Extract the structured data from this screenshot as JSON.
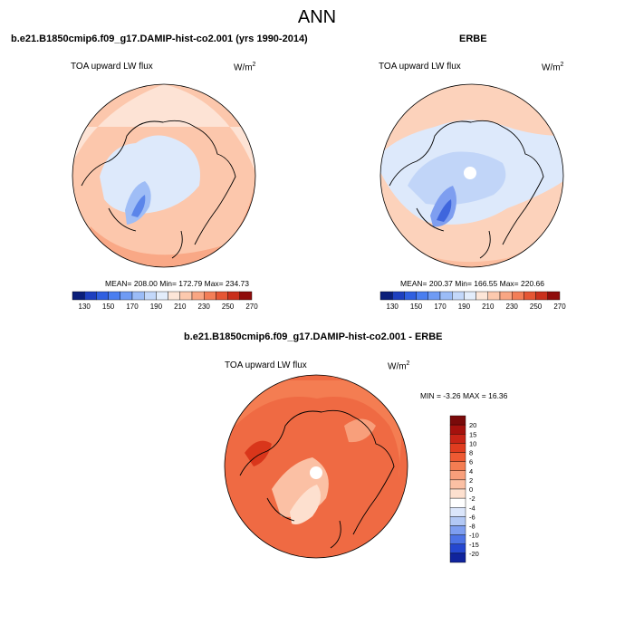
{
  "title": "ANN",
  "units": {
    "base": "W/m",
    "exp": "2"
  },
  "panels": [
    {
      "name": "model",
      "title": "b.e21.B1850cmip6.f09_g17.DAMIP-hist-co2.001 (yrs 1990-2014)",
      "variable": "TOA upward LW flux",
      "stats": "MEAN= 208.00  Min= 172.79  Max= 234.73",
      "pole_hole": false
    },
    {
      "name": "obs",
      "title": "ERBE",
      "variable": "TOA upward LW flux",
      "stats": "MEAN= 200.37  Min= 166.55  Max= 220.66",
      "pole_hole": true
    },
    {
      "name": "diff",
      "title": "b.e21.B1850cmip6.f09_g17.DAMIP-hist-co2.001 - ERBE",
      "variable": "TOA upward LW flux",
      "stats": "MIN =  -3.26 MAX =  16.36",
      "pole_hole": true
    }
  ],
  "chart_data": [
    {
      "type": "heatmap",
      "projection": "north-polar-stereographic",
      "title": "b.e21.B1850cmip6.f09_g17.DAMIP-hist-co2.001 (yrs 1990-2014)",
      "variable": "TOA upward LW flux",
      "units": "W/m2",
      "mean": 208.0,
      "min": 172.79,
      "max": 234.73,
      "colorbar_ticks": [
        "130",
        "150",
        "170",
        "190",
        "210",
        "230",
        "250",
        "270"
      ],
      "colorbar_colors": [
        "#0a1e7a",
        "#1d3fbf",
        "#2f5fe0",
        "#4a7ef0",
        "#6f9bf4",
        "#9bbcf7",
        "#c3d8fa",
        "#e3edfb",
        "#fde6d8",
        "#fcc9ae",
        "#f9a683",
        "#f37e57",
        "#e55634",
        "#c9301c",
        "#8f0c0b"
      ],
      "orientation": "horizontal"
    },
    {
      "type": "heatmap",
      "projection": "north-polar-stereographic",
      "title": "ERBE",
      "variable": "TOA upward LW flux",
      "units": "W/m2",
      "mean": 200.37,
      "min": 166.55,
      "max": 220.66,
      "colorbar_ticks": [
        "130",
        "150",
        "170",
        "190",
        "210",
        "230",
        "250",
        "270"
      ],
      "colorbar_colors": [
        "#0a1e7a",
        "#1d3fbf",
        "#2f5fe0",
        "#4a7ef0",
        "#6f9bf4",
        "#9bbcf7",
        "#c3d8fa",
        "#e3edfb",
        "#fde6d8",
        "#fcc9ae",
        "#f9a683",
        "#f37e57",
        "#e55634",
        "#c9301c",
        "#8f0c0b"
      ],
      "orientation": "horizontal"
    },
    {
      "type": "heatmap",
      "projection": "north-polar-stereographic",
      "title": "b.e21.B1850cmip6.f09_g17.DAMIP-hist-co2.001 - ERBE",
      "variable": "TOA upward LW flux",
      "units": "W/m2",
      "min": -3.26,
      "max": 16.36,
      "colorbar_ticks": [
        "20",
        "15",
        "10",
        "8",
        "6",
        "4",
        "2",
        "0",
        "-2",
        "-4",
        "-6",
        "-8",
        "-10",
        "-15",
        "-20"
      ],
      "colorbar_colors": [
        "#7a0a0a",
        "#a5110d",
        "#c82416",
        "#e03c1f",
        "#ee5a33",
        "#f47d52",
        "#f89f7b",
        "#fbc0a4",
        "#fde0cf",
        "#ffffff",
        "#dbe6fb",
        "#b2c8f5",
        "#7e9ef0",
        "#4d73e6",
        "#2547d0",
        "#10249d"
      ],
      "orientation": "vertical"
    }
  ]
}
